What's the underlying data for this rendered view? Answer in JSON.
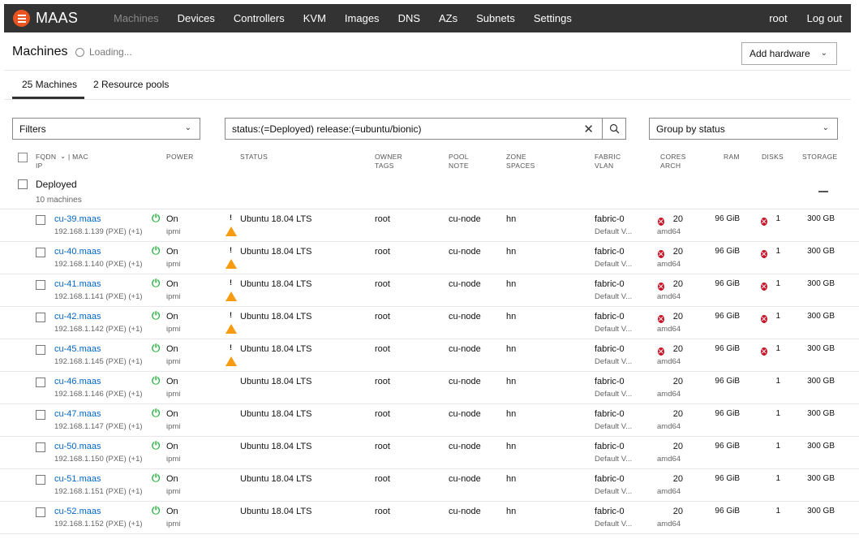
{
  "nav": {
    "brand": "MAAS",
    "items": [
      "Machines",
      "Devices",
      "Controllers",
      "KVM",
      "Images",
      "DNS",
      "AZs",
      "Subnets",
      "Settings"
    ],
    "active": "Machines",
    "user": "root",
    "logout": "Log out"
  },
  "header": {
    "title": "Machines",
    "loading": "Loading...",
    "add_hardware": "Add hardware"
  },
  "tabs": {
    "machines": "25 Machines",
    "pools": "2 Resource pools"
  },
  "filters": {
    "filters_label": "Filters",
    "search_value": "status:(=Deployed) release:(=ubuntu/bionic)",
    "group_by": "Group by status"
  },
  "table_headers": {
    "fqdn": "FQDN",
    "mac": "| MAC",
    "ip": "IP",
    "power": "Power",
    "status": "Status",
    "owner": "Owner",
    "tags": "Tags",
    "pool": "Pool",
    "note": "Note",
    "zone": "Zone",
    "spaces": "Spaces",
    "fabric": "Fabric",
    "vlan": "VLAN",
    "cores": "Cores",
    "arch": "Arch",
    "ram": "RAM",
    "disks": "Disks",
    "storage": "Storage"
  },
  "group": {
    "name": "Deployed",
    "count": "10 machines"
  },
  "colors": {
    "accent": "#e95420",
    "nav_bg": "#333333",
    "link": "#0066cc",
    "power_on": "#38b44a",
    "error": "#c7162b",
    "warning": "#f99b11"
  },
  "machines": [
    {
      "fqdn": "cu-39.maas",
      "ip": "192.168.1.139 (PXE) (+1)",
      "power": "On",
      "power_type": "ipmi",
      "status": "Ubuntu 18.04 LTS",
      "warning": true,
      "owner": "root",
      "pool": "cu-node",
      "zone": "hn",
      "fabric": "fabric-0",
      "vlan": "Default V...",
      "cores": "20",
      "core_error": true,
      "arch": "amd64",
      "ram": "96 GiB",
      "disks": "1",
      "disk_error": true,
      "storage": "300 GB"
    },
    {
      "fqdn": "cu-40.maas",
      "ip": "192.168.1.140 (PXE) (+1)",
      "power": "On",
      "power_type": "ipmi",
      "status": "Ubuntu 18.04 LTS",
      "warning": true,
      "owner": "root",
      "pool": "cu-node",
      "zone": "hn",
      "fabric": "fabric-0",
      "vlan": "Default V...",
      "cores": "20",
      "core_error": true,
      "arch": "amd64",
      "ram": "96 GiB",
      "disks": "1",
      "disk_error": true,
      "storage": "300 GB"
    },
    {
      "fqdn": "cu-41.maas",
      "ip": "192.168.1.141 (PXE) (+1)",
      "power": "On",
      "power_type": "ipmi",
      "status": "Ubuntu 18.04 LTS",
      "warning": true,
      "owner": "root",
      "pool": "cu-node",
      "zone": "hn",
      "fabric": "fabric-0",
      "vlan": "Default V...",
      "cores": "20",
      "core_error": true,
      "arch": "amd64",
      "ram": "96 GiB",
      "disks": "1",
      "disk_error": true,
      "storage": "300 GB"
    },
    {
      "fqdn": "cu-42.maas",
      "ip": "192.168.1.142 (PXE) (+1)",
      "power": "On",
      "power_type": "ipmi",
      "status": "Ubuntu 18.04 LTS",
      "warning": true,
      "owner": "root",
      "pool": "cu-node",
      "zone": "hn",
      "fabric": "fabric-0",
      "vlan": "Default V...",
      "cores": "20",
      "core_error": true,
      "arch": "amd64",
      "ram": "96 GiB",
      "disks": "1",
      "disk_error": true,
      "storage": "300 GB"
    },
    {
      "fqdn": "cu-45.maas",
      "ip": "192.168.1.145 (PXE) (+1)",
      "power": "On",
      "power_type": "ipmi",
      "status": "Ubuntu 18.04 LTS",
      "warning": true,
      "owner": "root",
      "pool": "cu-node",
      "zone": "hn",
      "fabric": "fabric-0",
      "vlan": "Default V...",
      "cores": "20",
      "core_error": true,
      "arch": "amd64",
      "ram": "96 GiB",
      "disks": "1",
      "disk_error": true,
      "storage": "300 GB"
    },
    {
      "fqdn": "cu-46.maas",
      "ip": "192.168.1.146 (PXE) (+1)",
      "power": "On",
      "power_type": "ipmi",
      "status": "Ubuntu 18.04 LTS",
      "warning": false,
      "owner": "root",
      "pool": "cu-node",
      "zone": "hn",
      "fabric": "fabric-0",
      "vlan": "Default V...",
      "cores": "20",
      "core_error": false,
      "arch": "amd64",
      "ram": "96 GiB",
      "disks": "1",
      "disk_error": false,
      "storage": "300 GB"
    },
    {
      "fqdn": "cu-47.maas",
      "ip": "192.168.1.147 (PXE) (+1)",
      "power": "On",
      "power_type": "ipmi",
      "status": "Ubuntu 18.04 LTS",
      "warning": false,
      "owner": "root",
      "pool": "cu-node",
      "zone": "hn",
      "fabric": "fabric-0",
      "vlan": "Default V...",
      "cores": "20",
      "core_error": false,
      "arch": "amd64",
      "ram": "96 GiB",
      "disks": "1",
      "disk_error": false,
      "storage": "300 GB"
    },
    {
      "fqdn": "cu-50.maas",
      "ip": "192.168.1.150 (PXE) (+1)",
      "power": "On",
      "power_type": "ipmi",
      "status": "Ubuntu 18.04 LTS",
      "warning": false,
      "owner": "root",
      "pool": "cu-node",
      "zone": "hn",
      "fabric": "fabric-0",
      "vlan": "Default V...",
      "cores": "20",
      "core_error": false,
      "arch": "amd64",
      "ram": "96 GiB",
      "disks": "1",
      "disk_error": false,
      "storage": "300 GB"
    },
    {
      "fqdn": "cu-51.maas",
      "ip": "192.168.1.151 (PXE) (+1)",
      "power": "On",
      "power_type": "ipmi",
      "status": "Ubuntu 18.04 LTS",
      "warning": false,
      "owner": "root",
      "pool": "cu-node",
      "zone": "hn",
      "fabric": "fabric-0",
      "vlan": "Default V...",
      "cores": "20",
      "core_error": false,
      "arch": "amd64",
      "ram": "96 GiB",
      "disks": "1",
      "disk_error": false,
      "storage": "300 GB"
    },
    {
      "fqdn": "cu-52.maas",
      "ip": "192.168.1.152 (PXE) (+1)",
      "power": "On",
      "power_type": "ipmi",
      "status": "Ubuntu 18.04 LTS",
      "warning": false,
      "owner": "root",
      "pool": "cu-node",
      "zone": "hn",
      "fabric": "fabric-0",
      "vlan": "Default V...",
      "cores": "20",
      "core_error": false,
      "arch": "amd64",
      "ram": "96 GiB",
      "disks": "1",
      "disk_error": false,
      "storage": "300 GB"
    }
  ]
}
